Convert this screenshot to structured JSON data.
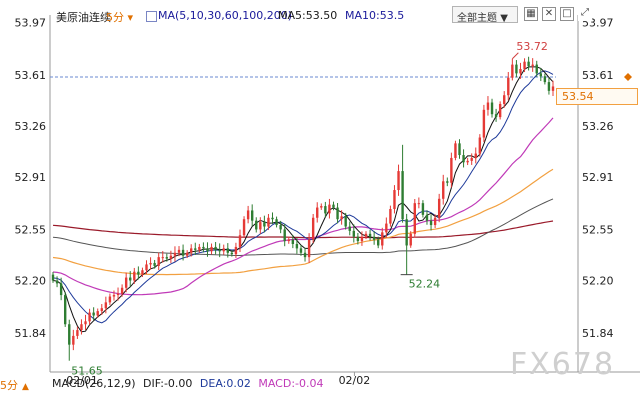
{
  "header": {
    "symbol": "美原油连续",
    "period": "5分",
    "ma_label": "MA(5,10,30,60,100,200)",
    "ma5": "MA5:53.50",
    "ma10": "MA10:53.5",
    "theme_button": "全部主题",
    "icons": [
      "grid-icon",
      "cross-icon",
      "square-icon",
      "maximize-icon"
    ]
  },
  "y_axis_labels": [
    "53.97",
    "53.61",
    "53.26",
    "52.91",
    "52.55",
    "52.20",
    "51.84"
  ],
  "current_price": "53.54",
  "annotations": {
    "high": "53.72",
    "low_left": "51.65",
    "low_mid": "52.24"
  },
  "date_labels": [
    "02/01",
    "02/02"
  ],
  "bottom_bar": {
    "period": "5分",
    "macd": "MACD(26,12,9)",
    "dif": "DIF:-0.00",
    "dea": "DEA:0.02",
    "macd_val": "MACD:-0.04"
  },
  "watermark": "FX678",
  "colors": {
    "up": "#e53935",
    "down": "#2e7d32",
    "ma5": "#111111",
    "ma10": "#1e3a9a",
    "ma30": "#c03ab8",
    "ma60": "#f2a040",
    "ma100": "#555555",
    "ma200": "#9a1a2a",
    "price_line": "#6a8ad0",
    "accent": "#e07000"
  },
  "chart_data": {
    "type": "candlestick",
    "ylim": [
      51.6,
      54.02
    ],
    "close": [
      52.2,
      52.18,
      52.1,
      51.9,
      51.76,
      51.82,
      51.86,
      51.9,
      51.92,
      51.98,
      51.96,
      51.99,
      52.01,
      52.05,
      52.09,
      52.1,
      52.11,
      52.15,
      52.22,
      52.2,
      52.26,
      52.24,
      52.27,
      52.31,
      52.32,
      52.3,
      52.36,
      52.36,
      52.35,
      52.37,
      52.39,
      52.41,
      52.37,
      52.39,
      52.42,
      52.41,
      52.43,
      52.42,
      52.4,
      52.43,
      52.41,
      52.4,
      52.42,
      52.39,
      52.38,
      52.43,
      52.51,
      52.62,
      52.68,
      52.61,
      52.55,
      52.6,
      52.57,
      52.63,
      52.62,
      52.58,
      52.55,
      52.47,
      52.48,
      52.45,
      52.42,
      52.39,
      52.36,
      52.48,
      52.63,
      52.7,
      52.71,
      52.66,
      52.72,
      52.7,
      52.62,
      52.64,
      52.57,
      52.54,
      52.5,
      52.47,
      52.5,
      52.52,
      52.5,
      52.48,
      52.44,
      52.53,
      52.59,
      52.69,
      52.82,
      52.95,
      52.62,
      52.44,
      52.52,
      52.73,
      52.73,
      52.65,
      52.61,
      52.58,
      52.63,
      52.76,
      52.88,
      52.87,
      53.04,
      53.14,
      53.06,
      53.01,
      53.02,
      53.04,
      53.07,
      53.18,
      53.37,
      53.42,
      53.34,
      53.32,
      53.41,
      53.47,
      53.59,
      53.68,
      53.62,
      53.65,
      53.7,
      53.67,
      53.68,
      53.62,
      53.6,
      53.56,
      53.5,
      53.53
    ]
  }
}
